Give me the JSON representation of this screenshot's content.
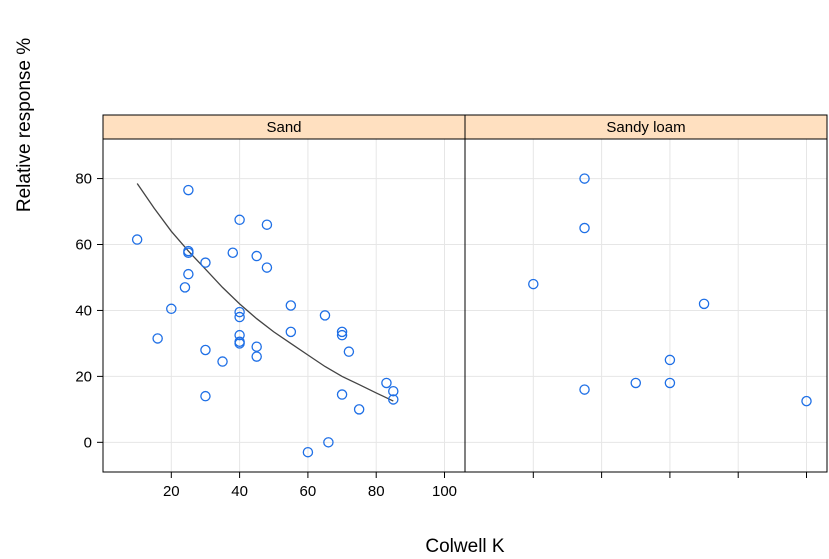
{
  "chart_data": {
    "type": "scatter",
    "ylabel": "Relative response %",
    "xlabel": "Colwell K",
    "y_ticks": [
      0,
      20,
      40,
      60,
      80
    ],
    "grid": true,
    "colors": {
      "point": "#1e6fe6",
      "strip": "#ffe0c0",
      "curve": "#444444",
      "grid": "#e6e6e6",
      "frame": "#000000"
    },
    "panels": [
      {
        "name": "Sand",
        "xlim": [
          0,
          106
        ],
        "ylim": [
          -9,
          92
        ],
        "x_ticks": [
          20,
          40,
          60,
          80,
          100
        ],
        "points": [
          {
            "x": 10,
            "y": 61.5
          },
          {
            "x": 16,
            "y": 31.5
          },
          {
            "x": 20,
            "y": 40.5
          },
          {
            "x": 24,
            "y": 47
          },
          {
            "x": 25,
            "y": 58
          },
          {
            "x": 25,
            "y": 57.5
          },
          {
            "x": 25,
            "y": 51
          },
          {
            "x": 25,
            "y": 76.5
          },
          {
            "x": 30,
            "y": 54.5
          },
          {
            "x": 30,
            "y": 28
          },
          {
            "x": 30,
            "y": 14
          },
          {
            "x": 35,
            "y": 24.5
          },
          {
            "x": 38,
            "y": 57.5
          },
          {
            "x": 40,
            "y": 67.5
          },
          {
            "x": 40,
            "y": 39.5
          },
          {
            "x": 40,
            "y": 38
          },
          {
            "x": 40,
            "y": 32.5
          },
          {
            "x": 40,
            "y": 30.5
          },
          {
            "x": 40,
            "y": 30
          },
          {
            "x": 45,
            "y": 56.5
          },
          {
            "x": 45,
            "y": 29
          },
          {
            "x": 45,
            "y": 26
          },
          {
            "x": 48,
            "y": 66
          },
          {
            "x": 48,
            "y": 53
          },
          {
            "x": 55,
            "y": 41.5
          },
          {
            "x": 55,
            "y": 33.5
          },
          {
            "x": 60,
            "y": -3
          },
          {
            "x": 65,
            "y": 38.5
          },
          {
            "x": 66,
            "y": 0
          },
          {
            "x": 70,
            "y": 33.5
          },
          {
            "x": 70,
            "y": 32.5
          },
          {
            "x": 70,
            "y": 14.5
          },
          {
            "x": 72,
            "y": 27.5
          },
          {
            "x": 75,
            "y": 10
          },
          {
            "x": 83,
            "y": 18
          },
          {
            "x": 85,
            "y": 15.5
          },
          {
            "x": 85,
            "y": 13
          }
        ],
        "fit_curve": [
          {
            "x": 10,
            "y": 78.5
          },
          {
            "x": 15,
            "y": 71
          },
          {
            "x": 20,
            "y": 64
          },
          {
            "x": 25,
            "y": 58
          },
          {
            "x": 30,
            "y": 52.5
          },
          {
            "x": 35,
            "y": 47
          },
          {
            "x": 40,
            "y": 42
          },
          {
            "x": 45,
            "y": 37.5
          },
          {
            "x": 50,
            "y": 33.5
          },
          {
            "x": 55,
            "y": 30
          },
          {
            "x": 60,
            "y": 26.5
          },
          {
            "x": 65,
            "y": 23
          },
          {
            "x": 70,
            "y": 20
          },
          {
            "x": 75,
            "y": 17.5
          },
          {
            "x": 80,
            "y": 15
          },
          {
            "x": 85,
            "y": 12.5
          }
        ]
      },
      {
        "name": "Sandy loam",
        "xlim": [
          0,
          106
        ],
        "ylim": [
          -9,
          92
        ],
        "x_ticks": [
          20,
          40,
          60,
          80,
          100
        ],
        "points": [
          {
            "x": 20,
            "y": 48
          },
          {
            "x": 35,
            "y": 80
          },
          {
            "x": 35,
            "y": 65
          },
          {
            "x": 35,
            "y": 16
          },
          {
            "x": 50,
            "y": 18
          },
          {
            "x": 60,
            "y": 25
          },
          {
            "x": 60,
            "y": 18
          },
          {
            "x": 70,
            "y": 42
          },
          {
            "x": 100,
            "y": 12.5
          }
        ]
      }
    ]
  }
}
